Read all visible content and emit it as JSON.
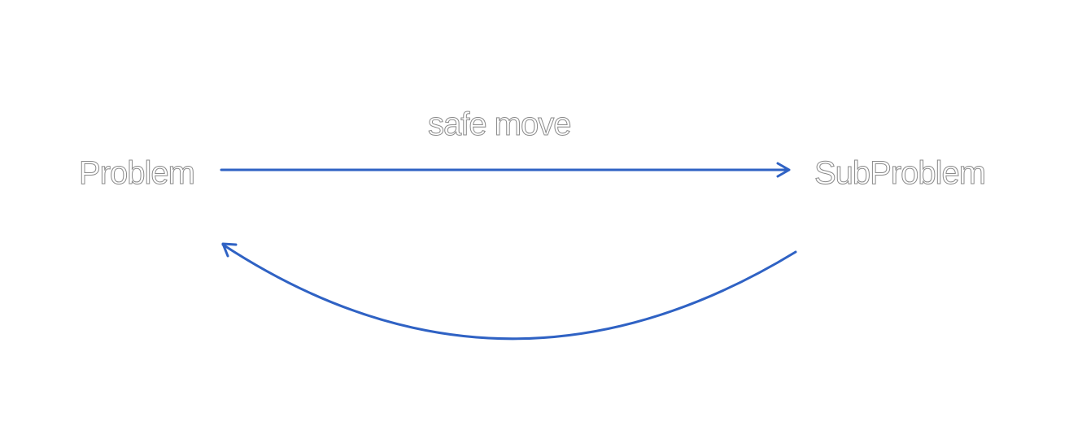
{
  "diagram": {
    "nodes": {
      "problem": "Problem",
      "subproblem": "SubProblem"
    },
    "edges": {
      "forward_label": "safe move"
    },
    "colors": {
      "arrow": "#2f62c4",
      "text_outline": "#8a8a8a",
      "background": "#ffffff"
    }
  }
}
